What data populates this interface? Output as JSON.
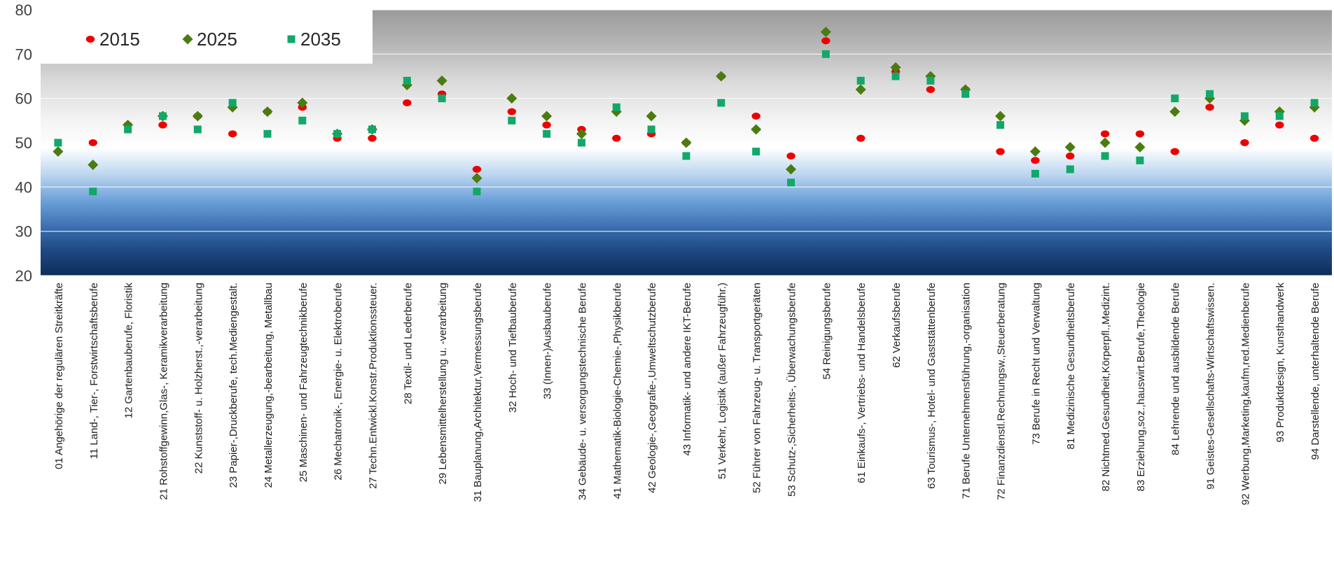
{
  "chart_data": {
    "type": "scatter",
    "title": "",
    "xlabel": "",
    "ylabel": "",
    "ylim": [
      20,
      80
    ],
    "yticks": [
      20,
      30,
      40,
      50,
      60,
      70,
      80
    ],
    "grid": true,
    "legend_position": "top-left",
    "categories": [
      "01 Angehörige der regulären Streitkräfte",
      "11 Land-, Tier-, Forstwirtschaftsberufe",
      "12 Gartenbauberufe, Floristik",
      "21 Rohstoffgewinn,Glas-, Keramikverarbeitung",
      "22 Kunststoff- u. Holzherst.,-verarbeitung",
      "23 Papier-,Druckberufe, tech.Mediengestalt.",
      "24 Metallerzeugung,-bearbeitung, Metallbau",
      "25 Maschinen- und Fahrzeugtechnikberufe",
      "26 Mechatronik-, Energie- u. Elektroberufe",
      "27 Techn.Entwickl.Konstr.Produktionssteuer.",
      "28 Textil- und Lederberufe",
      "29 Lebensmittelherstellung u. -verarbeitung",
      "31 Bauplanung,Architektur,Vermessungsberufe",
      "32 Hoch- und Tiefbauberufe",
      "33 (Innen-)Ausbauberufe",
      "34 Gebäude- u. versorgungstechnische Berufe",
      "41 Mathematik-Biologie-Chemie-,Physikberufe",
      "42 Geologie-,Geografie-,Umweltschutzberufe",
      "43 Informatik- und andere IKT-Berufe",
      "51 Verkehr, Logistik (außer Fahrzeugführ.)",
      "52 Führer von Fahrzeug- u. Transportgeräten",
      "53 Schutz-,Sicherheits-, Überwachungsberufe",
      "54 Reinigungsberufe",
      "61 Einkaufs-, Vertriebs- und Handelsberufe",
      "62 Verkaufsberufe",
      "63 Tourismus-, Hotel- und Gaststättenberufe",
      "71 Berufe Unternehmensführung,-organisation",
      "72 Finanzdienstl.Rechnungsw.,Steuerberatung",
      "73 Berufe in Recht und Verwaltung",
      "81 Medizinische Gesundheitsberufe",
      "82 Nichtmed.Gesundheit,Körperpfl.,Medizint.",
      "83 Erziehung,soz.,hauswirt.Berufe,Theologie",
      "84 Lehrende und ausbildende Berufe",
      "91 Geistes-Gesellschafts-Wirtschaftswissen.",
      "92 Werbung,Marketing,kaufm,red.Medienberufe",
      "93 Produktdesign, Kunsthandwerk",
      "94 Darstellende, unterhaltende Berufe"
    ],
    "series": [
      {
        "name": "2015",
        "marker": "circle",
        "color": "#ee0000",
        "values": [
          null,
          50,
          54,
          54,
          56,
          52,
          57,
          58,
          51,
          51,
          59,
          61,
          44,
          57,
          54,
          53,
          51,
          52,
          50,
          65,
          56,
          47,
          73,
          51,
          66,
          62,
          62,
          48,
          46,
          47,
          52,
          52,
          48,
          58,
          50,
          54,
          51
        ]
      },
      {
        "name": "2025",
        "marker": "diamond",
        "color": "#4a7c10",
        "values": [
          48,
          45,
          54,
          56,
          56,
          58,
          57,
          59,
          52,
          53,
          63,
          64,
          42,
          60,
          56,
          52,
          57,
          56,
          50,
          65,
          53,
          44,
          75,
          62,
          67,
          65,
          62,
          56,
          48,
          49,
          50,
          49,
          57,
          60,
          55,
          57,
          58
        ]
      },
      {
        "name": "2035",
        "marker": "square",
        "color": "#11a86a",
        "values": [
          50,
          39,
          53,
          56,
          53,
          59,
          52,
          55,
          52,
          53,
          64,
          60,
          39,
          55,
          52,
          50,
          58,
          53,
          47,
          59,
          48,
          41,
          70,
          64,
          65,
          64,
          61,
          54,
          43,
          44,
          47,
          46,
          60,
          61,
          56,
          56,
          59
        ]
      }
    ]
  }
}
